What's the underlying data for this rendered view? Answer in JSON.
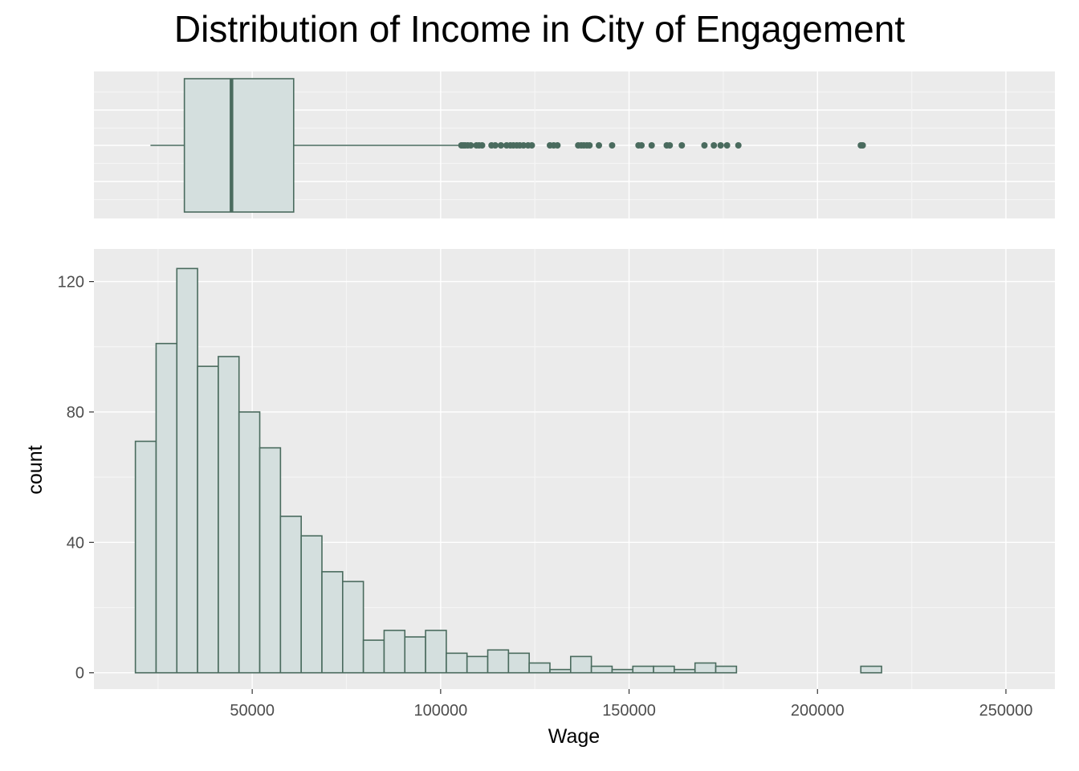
{
  "colors": {
    "panel_bg": "#ebebeb",
    "grid_major": "#ffffff",
    "grid_minor": "#f5f5f5",
    "fill": "#d4dfde",
    "stroke": "#4a6b5e",
    "tick": "#333333"
  },
  "chart_data": {
    "title": "Distribution of Income in City of Engagement",
    "xlabel": "Wage",
    "ylabel": "count",
    "xlim": [
      8000,
      263000
    ],
    "x_ticks": [
      50000,
      100000,
      150000,
      200000,
      250000
    ],
    "x_tick_labels": [
      "50000",
      "100000",
      "150000",
      "200000",
      "250000"
    ],
    "boxplot": {
      "type": "boxplot",
      "whisker_low": 23000,
      "q1": 32000,
      "median": 44500,
      "q3": 61000,
      "whisker_high": 105000,
      "outliers": [
        105500,
        106000,
        106500,
        107200,
        108000,
        109500,
        110200,
        111000,
        113500,
        114500,
        116000,
        117500,
        118500,
        119300,
        120200,
        121000,
        122000,
        123200,
        124200,
        129000,
        130000,
        131000,
        136500,
        137300,
        138000,
        138800,
        139500,
        142000,
        145500,
        152500,
        153300,
        156000,
        160000,
        160800,
        164000,
        170000,
        172500,
        174300,
        176000,
        179000,
        211500,
        212000
      ]
    },
    "histogram": {
      "type": "bar",
      "ylim": [
        -5,
        130
      ],
      "y_ticks": [
        0,
        40,
        80,
        120
      ],
      "y_tick_labels": [
        "0",
        "40",
        "80",
        "120"
      ],
      "bin_start": 19000,
      "bin_width": 5500,
      "counts": [
        71,
        101,
        124,
        94,
        97,
        80,
        69,
        48,
        42,
        31,
        28,
        10,
        13,
        11,
        13,
        6,
        5,
        7,
        6,
        3,
        1,
        5,
        2,
        1,
        2,
        2,
        1,
        3,
        2,
        0,
        0,
        0,
        0,
        0,
        0,
        2
      ]
    }
  }
}
